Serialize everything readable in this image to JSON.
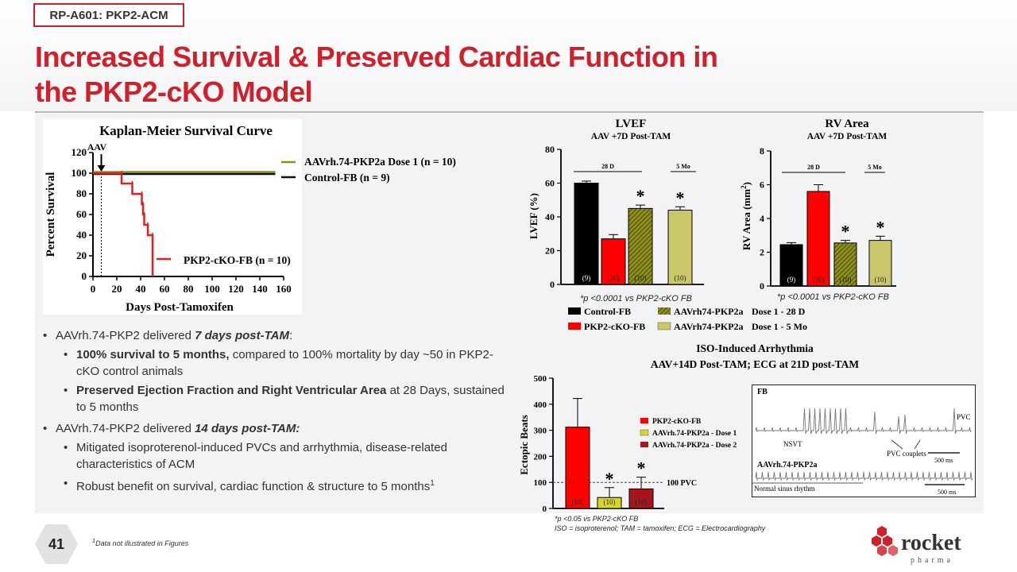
{
  "tag": "RP-A601: PKP2-ACM",
  "title_line1": "Increased Survival & Preserved Cardiac Function in",
  "title_line2": "the PKP2-cKO Model",
  "page_number": "41",
  "footnote_text": "Data not illustrated in Figures",
  "footnote_mark": "1",
  "logo": {
    "word": "rocket",
    "sub": "pharma"
  },
  "colors": {
    "brand_red": "#d0202a",
    "olive": "#8f8f1e",
    "olive_light": "#c8c86a",
    "dark_red": "#a3161c"
  },
  "bullets": {
    "b1_pre": "AAVrh.74-PKP2 delivered ",
    "b1_em": "7 days post-TAM",
    "b1_post": ":",
    "b1a_bold": "100% survival to 5 months,",
    "b1a_rest": " compared to 100% mortality by day ~50 in PKP2-cKO control animals",
    "b1b_bold": "Preserved Ejection Fraction and Right Ventricular Area",
    "b1b_rest": " at 28 Days, sustained to 5 months",
    "b2_pre": "AAVrh.74-PKP2 delivered ",
    "b2_em": "14 days post-TAM:",
    "b2a": "Mitigated isoproterenol-induced PVCs and arrhythmia, disease-related characteristics of ACM",
    "b2b": "Robust benefit on survival, cardiac function & structure to 5 months",
    "b2b_sup": "1"
  },
  "chart_data": [
    {
      "type": "line",
      "title": "Kaplan-Meier Survival Curve",
      "xlabel": "Days Post-Tamoxifen",
      "ylabel": "Percent Survival",
      "xlim": [
        0,
        160
      ],
      "ylim": [
        0,
        120
      ],
      "xticks": [
        "0",
        "20",
        "40",
        "60",
        "80",
        "100",
        "120",
        "140",
        "160"
      ],
      "yticks": [
        "0",
        "20",
        "40",
        "60",
        "80",
        "100",
        "120"
      ],
      "annotation": "AAV",
      "annotation_x": 7,
      "series": [
        {
          "name": "AAVrh.74-PKP2a Dose 1 (n = 10)",
          "color": "#8f8f1e",
          "x": [
            0,
            153
          ],
          "y": [
            100,
            100
          ]
        },
        {
          "name": "Control-FB (n = 9)",
          "color": "#111111",
          "x": [
            0,
            153
          ],
          "y": [
            100,
            100
          ]
        },
        {
          "name": "PKP2-cKO-FB (n = 10)",
          "color": "#e02020",
          "x": [
            0,
            24,
            24,
            33,
            33,
            41,
            41,
            42,
            42,
            43,
            43,
            46,
            46,
            50,
            50
          ],
          "y": [
            100,
            100,
            90,
            90,
            80,
            80,
            70,
            70,
            60,
            60,
            50,
            50,
            40,
            40,
            0
          ]
        }
      ]
    },
    {
      "type": "bar",
      "title": "LVEF",
      "subtitle": "AAV +7D Post-TAM",
      "ylabel": "LVEF (%)",
      "ylim": [
        0,
        80
      ],
      "yticks": [
        "0",
        "20",
        "40",
        "60",
        "80"
      ],
      "categories": [
        "Control-FB",
        "PKP2-cKO-FB",
        "AAVrh74-PKP2a Dose 1 - 28 D",
        "AAVrh74-PKP2a Dose 1 - 5 Mo"
      ],
      "values": [
        60,
        27,
        45,
        44
      ],
      "errors": [
        1.2,
        2.5,
        2,
        2
      ],
      "n_labels": [
        "(9)",
        "(10)",
        "(10)",
        "(10)"
      ],
      "stars": [
        "",
        "",
        "*",
        "*"
      ],
      "brackets": [
        "28 D",
        "5 Mo"
      ],
      "note": "*p <0.0001 vs PKP2-cKO FB"
    },
    {
      "type": "bar",
      "title": "RV Area",
      "subtitle": "AAV +7D Post-TAM",
      "ylabel": "RV Area (mm",
      "ylabel_sup": "2",
      "ylabel_end": ")",
      "ylim": [
        0,
        8
      ],
      "yticks": [
        "0",
        "2",
        "4",
        "6",
        "8"
      ],
      "categories": [
        "Control-FB",
        "PKP2-cKO-FB",
        "AAVrh74-PKP2a Dose 1 - 28 D",
        "AAVrh74-PKP2a Dose 1 - 5 Mo"
      ],
      "values": [
        2.45,
        5.6,
        2.55,
        2.7
      ],
      "errors": [
        0.12,
        0.4,
        0.15,
        0.25
      ],
      "n_labels": [
        "(9)",
        "(10)",
        "(10)",
        "(10)"
      ],
      "stars": [
        "",
        "",
        "*",
        "*"
      ],
      "brackets": [
        "28 D",
        "5 Mo"
      ],
      "note": "*p <0.0001 vs PKP2-cKO FB"
    },
    {
      "type": "bar",
      "title": "ISO-Induced Arrhythmia",
      "subtitle": "AAV+14D Post-TAM; ECG at 21D post-TAM",
      "ylabel": "Ectopic Beats",
      "ylim": [
        0,
        500
      ],
      "yticks": [
        "0",
        "100",
        "200",
        "300",
        "400",
        "500"
      ],
      "categories": [
        "PKP2-cKO-FB",
        "AAVrh.74-PKP2a - Dose 1",
        "AAVrh.74-PKP2a - Dose 2"
      ],
      "values": [
        312,
        42,
        75
      ],
      "errors": [
        110,
        38,
        45
      ],
      "n_labels": [
        "(10)",
        "(10)",
        "(10)"
      ],
      "stars": [
        "",
        "*",
        "*"
      ],
      "ref_line": 100,
      "ref_label": "100 PVC",
      "note": "*p <0.05 vs PKP2-cKO FB"
    }
  ],
  "bar_legend": [
    {
      "label": "Control-FB",
      "color": "#000000",
      "hatch": false
    },
    {
      "label": "AAVrh74-PKP2a",
      "dose": "Dose 1 - 28 D",
      "color": "#8f8f1e",
      "hatch": true
    },
    {
      "label": "PKP2-cKO-FB",
      "color": "#ff0000",
      "hatch": false
    },
    {
      "label": "AAVrh74-PKP2a",
      "dose": "Dose 1 - 5 Mo",
      "color": "#c8c86a",
      "hatch": false
    }
  ],
  "abbrev_note": "ISO = isoproterenol; TAM = tamoxifen; ECG = Electrocardiography",
  "ecg": {
    "label_top": "FB",
    "label_nsvt": "NSVT",
    "label_couplets": "PVC couplets",
    "label_pvc": "PVC",
    "scale_top": "500 ms",
    "label_bottom": "AAVrh.74-PKP2a",
    "label_nsr": "Normal sinus rhythm",
    "scale_bottom": "500 ms"
  }
}
